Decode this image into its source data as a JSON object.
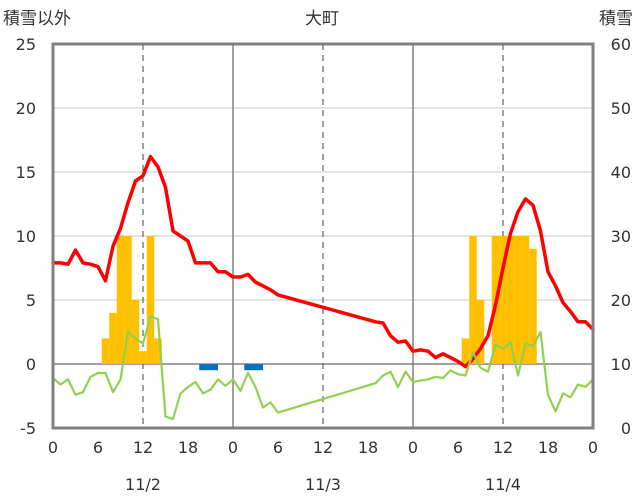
{
  "chart_data": {
    "type": "line",
    "title": "大町",
    "ylabel_left": "積雪以外",
    "ylabel_right": "積雪",
    "ylim_left": [
      -5,
      25
    ],
    "ylim_right": [
      0,
      60
    ],
    "yticks_left": [
      "-5",
      "0",
      "5",
      "10",
      "15",
      "20",
      "25"
    ],
    "yticks_right": [
      "0",
      "10",
      "20",
      "30",
      "40",
      "50",
      "60"
    ],
    "x_range_hours": [
      0,
      72
    ],
    "xticks": [
      "0",
      "6",
      "12",
      "18",
      "0",
      "6",
      "12",
      "18",
      "0",
      "6",
      "12",
      "18",
      "0"
    ],
    "date_labels": [
      {
        "label": "11/2",
        "hour": 12
      },
      {
        "label": "11/3",
        "hour": 36
      },
      {
        "label": "11/4",
        "hour": 60
      }
    ],
    "series": [
      {
        "color": "#ff0000",
        "axis": "left",
        "kind": "line",
        "points": [
          [
            0,
            7.9
          ],
          [
            1,
            7.9
          ],
          [
            2,
            7.8
          ],
          [
            3,
            8.9
          ],
          [
            4,
            7.9
          ],
          [
            5,
            7.8
          ],
          [
            6,
            7.6
          ],
          [
            7,
            6.5
          ],
          [
            8,
            9.2
          ],
          [
            9,
            10.6
          ],
          [
            10,
            12.6
          ],
          [
            11,
            14.3
          ],
          [
            12,
            14.7
          ],
          [
            13,
            16.2
          ],
          [
            14,
            15.4
          ],
          [
            15,
            13.8
          ],
          [
            16,
            10.4
          ],
          [
            17,
            10.0
          ],
          [
            18,
            9.6
          ],
          [
            19,
            7.9
          ],
          [
            20,
            7.9
          ],
          [
            21,
            7.9
          ],
          [
            22,
            7.2
          ],
          [
            23,
            7.2
          ],
          [
            24,
            6.8
          ],
          [
            25,
            6.8
          ],
          [
            26,
            7.0
          ],
          [
            27,
            6.4
          ],
          [
            28,
            6.1
          ],
          [
            29,
            5.8
          ],
          [
            30,
            5.4
          ],
          [
            43,
            3.3
          ],
          [
            44,
            3.2
          ],
          [
            45,
            2.2
          ],
          [
            46,
            1.7
          ],
          [
            47,
            1.8
          ],
          [
            48,
            1.0
          ],
          [
            49,
            1.1
          ],
          [
            50,
            1.0
          ],
          [
            51,
            0.5
          ],
          [
            52,
            0.8
          ],
          [
            53,
            0.5
          ],
          [
            54,
            0.2
          ],
          [
            55,
            -0.2
          ],
          [
            56,
            0.4
          ],
          [
            57,
            1.2
          ],
          [
            58,
            2.2
          ],
          [
            59,
            4.6
          ],
          [
            60,
            7.5
          ],
          [
            61,
            10.2
          ],
          [
            62,
            11.9
          ],
          [
            63,
            12.9
          ],
          [
            64,
            12.4
          ],
          [
            65,
            10.4
          ],
          [
            66,
            7.2
          ],
          [
            67,
            6.1
          ],
          [
            68,
            4.8
          ],
          [
            69,
            4.1
          ],
          [
            70,
            3.3
          ],
          [
            71,
            3.3
          ],
          [
            72,
            2.7
          ]
        ]
      },
      {
        "color": "#92d050",
        "axis": "left",
        "kind": "line",
        "points": [
          [
            0,
            -1.1
          ],
          [
            1,
            -1.6
          ],
          [
            2,
            -1.2
          ],
          [
            3,
            -2.4
          ],
          [
            4,
            -2.2
          ],
          [
            5,
            -1.0
          ],
          [
            6,
            -0.7
          ],
          [
            7,
            -0.7
          ],
          [
            8,
            -2.2
          ],
          [
            9,
            -1.2
          ],
          [
            10,
            2.5
          ],
          [
            11,
            2.0
          ],
          [
            12,
            1.6
          ],
          [
            13,
            3.7
          ],
          [
            14,
            3.5
          ],
          [
            15,
            -4.1
          ],
          [
            16,
            -4.3
          ],
          [
            17,
            -2.3
          ],
          [
            18,
            -1.8
          ],
          [
            19,
            -1.4
          ],
          [
            20,
            -2.3
          ],
          [
            21,
            -2.0
          ],
          [
            22,
            -1.2
          ],
          [
            23,
            -1.7
          ],
          [
            24,
            -1.2
          ],
          [
            25,
            -2.1
          ],
          [
            26,
            -0.7
          ],
          [
            27,
            -1.8
          ],
          [
            28,
            -3.4
          ],
          [
            29,
            -3.0
          ],
          [
            30,
            -3.8
          ],
          [
            43,
            -1.5
          ],
          [
            44,
            -0.9
          ],
          [
            45,
            -0.6
          ],
          [
            46,
            -1.8
          ],
          [
            47,
            -0.6
          ],
          [
            48,
            -1.4
          ],
          [
            49,
            -1.3
          ],
          [
            50,
            -1.2
          ],
          [
            51,
            -1.0
          ],
          [
            52,
            -1.1
          ],
          [
            53,
            -0.5
          ],
          [
            54,
            -0.8
          ],
          [
            55,
            -0.9
          ],
          [
            56,
            0.9
          ],
          [
            57,
            -0.3
          ],
          [
            58,
            -0.6
          ],
          [
            59,
            1.5
          ],
          [
            60,
            1.2
          ],
          [
            61,
            1.7
          ],
          [
            62,
            -0.9
          ],
          [
            63,
            1.6
          ],
          [
            64,
            1.4
          ],
          [
            65,
            2.5
          ],
          [
            66,
            -2.4
          ],
          [
            67,
            -3.7
          ],
          [
            68,
            -2.3
          ],
          [
            69,
            -2.6
          ],
          [
            70,
            -1.6
          ],
          [
            71,
            -1.8
          ],
          [
            72,
            -1.2
          ]
        ]
      },
      {
        "color": "#0070c0",
        "axis": "left",
        "kind": "segments",
        "segments": [
          [
            20,
            22,
            -0.25
          ],
          [
            26,
            28,
            -0.25
          ]
        ]
      },
      {
        "color": "#7030a0",
        "axis": "left",
        "kind": "line",
        "points": [
          [
            0,
            -5
          ],
          [
            30,
            -5
          ]
        ]
      },
      {
        "color": "#7030a0",
        "axis": "left",
        "kind": "line",
        "points": [
          [
            43,
            -5
          ],
          [
            72,
            -5
          ]
        ]
      },
      {
        "color": "#ffc000",
        "axis": "left",
        "kind": "bars",
        "bars": [
          [
            7,
            2
          ],
          [
            8,
            4
          ],
          [
            9,
            10
          ],
          [
            10,
            10
          ],
          [
            11,
            5
          ],
          [
            12,
            1
          ],
          [
            13,
            10
          ],
          [
            14,
            2
          ],
          [
            55,
            2
          ],
          [
            56,
            10
          ],
          [
            57,
            5
          ],
          [
            59,
            10
          ],
          [
            60,
            10
          ],
          [
            61,
            10
          ],
          [
            62,
            10
          ],
          [
            63,
            10
          ],
          [
            64,
            9
          ]
        ]
      }
    ]
  }
}
